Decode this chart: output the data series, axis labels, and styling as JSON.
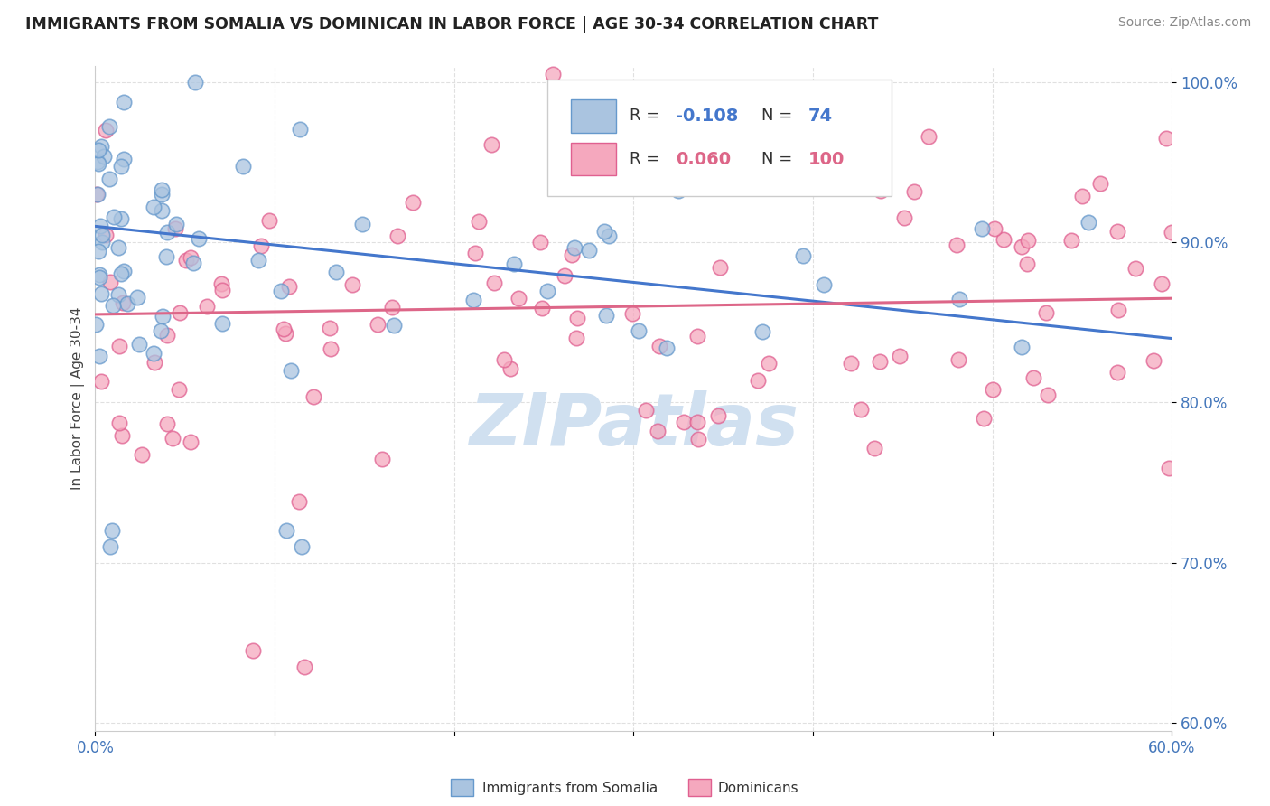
{
  "title": "IMMIGRANTS FROM SOMALIA VS DOMINICAN IN LABOR FORCE | AGE 30-34 CORRELATION CHART",
  "source": "Source: ZipAtlas.com",
  "ylabel": "In Labor Force | Age 30-34",
  "xlim": [
    0.0,
    0.6
  ],
  "ylim": [
    0.595,
    1.01
  ],
  "xticks": [
    0.0,
    0.1,
    0.2,
    0.3,
    0.4,
    0.5,
    0.6
  ],
  "xticklabels": [
    "0.0%",
    "",
    "",
    "",
    "",
    "",
    "60.0%"
  ],
  "yticks": [
    0.6,
    0.7,
    0.8,
    0.9,
    1.0
  ],
  "yticklabels": [
    "60.0%",
    "70.0%",
    "80.0%",
    "90.0%",
    "100.0%"
  ],
  "legend_r_somalia": "-0.108",
  "legend_n_somalia": "74",
  "legend_r_dominican": "0.060",
  "legend_n_dominican": "100",
  "somalia_color": "#aac4e0",
  "dominican_color": "#f5a8be",
  "somalia_edge": "#6699cc",
  "dominican_edge": "#e06090",
  "trend_somalia_color": "#4477cc",
  "trend_dominican_color": "#dd6688",
  "background_color": "#ffffff",
  "watermark": "ZIPatlas",
  "watermark_color": "#d0e0f0",
  "tick_color": "#4477bb",
  "grid_color": "#e0e0e0",
  "title_color": "#222222",
  "source_color": "#888888"
}
